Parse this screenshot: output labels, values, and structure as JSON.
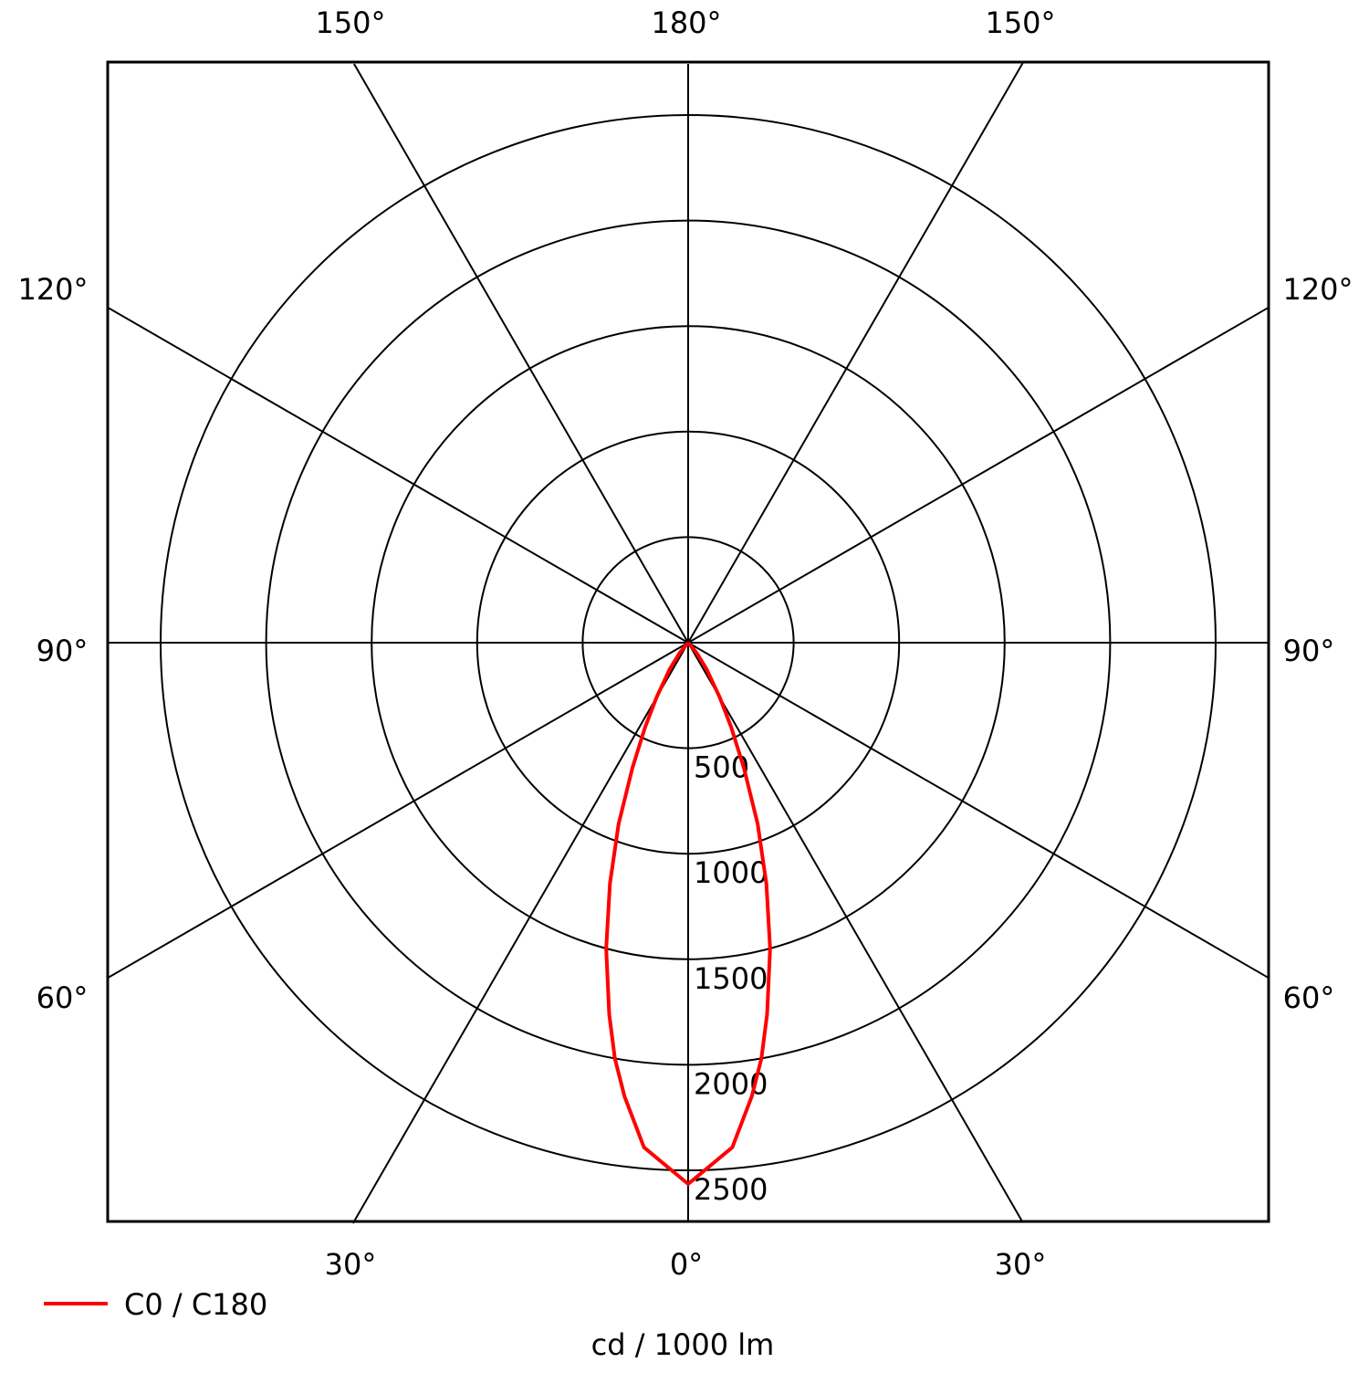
{
  "chart_data": {
    "type": "polar",
    "unit_label": "cd / 1000 lm",
    "radial_ticks": [
      500,
      1000,
      1500,
      2000,
      2500
    ],
    "radial_max": 2500,
    "angle_labels": {
      "top": [
        "150°",
        "180°",
        "150°"
      ],
      "bottom": [
        "30°",
        "0°",
        "30°"
      ],
      "left": [
        "120°",
        "90°",
        "60°"
      ],
      "right": [
        "120°",
        "90°",
        "60°"
      ]
    },
    "series": [
      {
        "name": "C0 / C180",
        "color": "#ff0000",
        "angles_deg": [
          0,
          5,
          8,
          10,
          12,
          15,
          18,
          21,
          24,
          27,
          30,
          35,
          40,
          45
        ],
        "values": [
          2565,
          2400,
          2170,
          2000,
          1800,
          1500,
          1200,
          920,
          650,
          450,
          300,
          150,
          60,
          0
        ],
        "symmetric": true
      }
    ],
    "legend_placement": "bottom-left",
    "grid": true
  }
}
